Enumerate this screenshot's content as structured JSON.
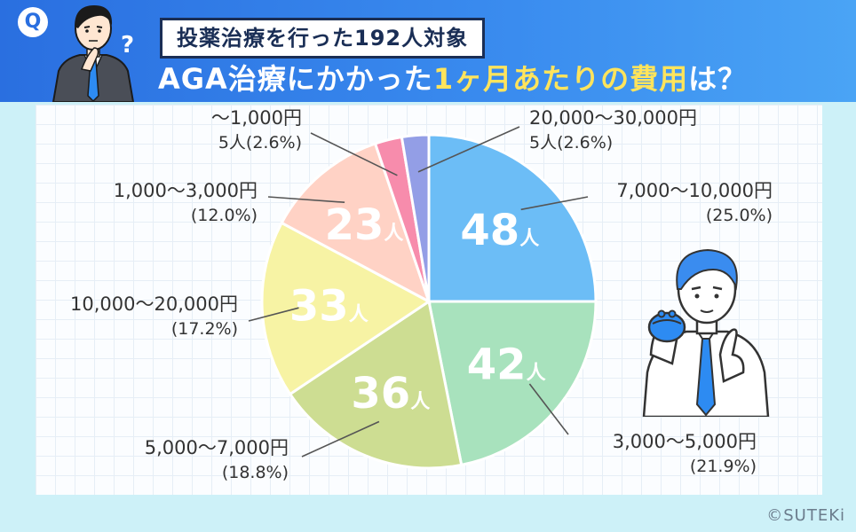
{
  "header": {
    "badge": "Q",
    "question_mark": "?",
    "subtitle": "投薬治療を行った192人対象",
    "title_part1": "AGA治療にかかった",
    "title_highlight": "1ヶ月あたりの費用",
    "title_part2": "は？"
  },
  "copyright": "©SUTEKi",
  "chart_data": {
    "type": "pie",
    "unit": "人",
    "slices": [
      {
        "label": "7,000〜10,000円",
        "count": 48,
        "percent": "(25.0%)",
        "color": "#6cbdf6",
        "inner": "48",
        "labelLayout": "two-line"
      },
      {
        "label": "3,000〜5,000円",
        "count": 42,
        "percent": "(21.9%)",
        "color": "#a8e2bd",
        "inner": "42",
        "labelLayout": "two-line"
      },
      {
        "label": "5,000〜7,000円",
        "count": 36,
        "percent": "(18.8%)",
        "color": "#cddd92",
        "inner": "36",
        "labelLayout": "two-line"
      },
      {
        "label": "10,000〜20,000円",
        "count": 33,
        "percent": "(17.2%)",
        "color": "#f7f3a4",
        "inner": "33",
        "labelLayout": "two-line"
      },
      {
        "label": "1,000〜3,000円",
        "count": 23,
        "percent": "(12.0%)",
        "color": "#ffd2c5",
        "inner": "23",
        "labelLayout": "two-line"
      },
      {
        "label": "〜1,000円",
        "count": 5,
        "percent": "5人(2.6%)",
        "color": "#f78cac",
        "inner": "",
        "labelLayout": "two-line"
      },
      {
        "label": "20,000〜30,000円",
        "count": 5,
        "percent": "5人(2.6%)",
        "color": "#939ee6",
        "inner": "",
        "labelLayout": "two-line"
      }
    ]
  },
  "colors": {
    "header_start": "#2a6fe0",
    "header_end": "#4aa4f5",
    "title_highlight": "#ffe45c",
    "background": "#cdf1f8",
    "label_text": "#333333"
  },
  "icons": [
    "question-man-icon",
    "thinking-man-icon",
    "wallet-icon"
  ]
}
